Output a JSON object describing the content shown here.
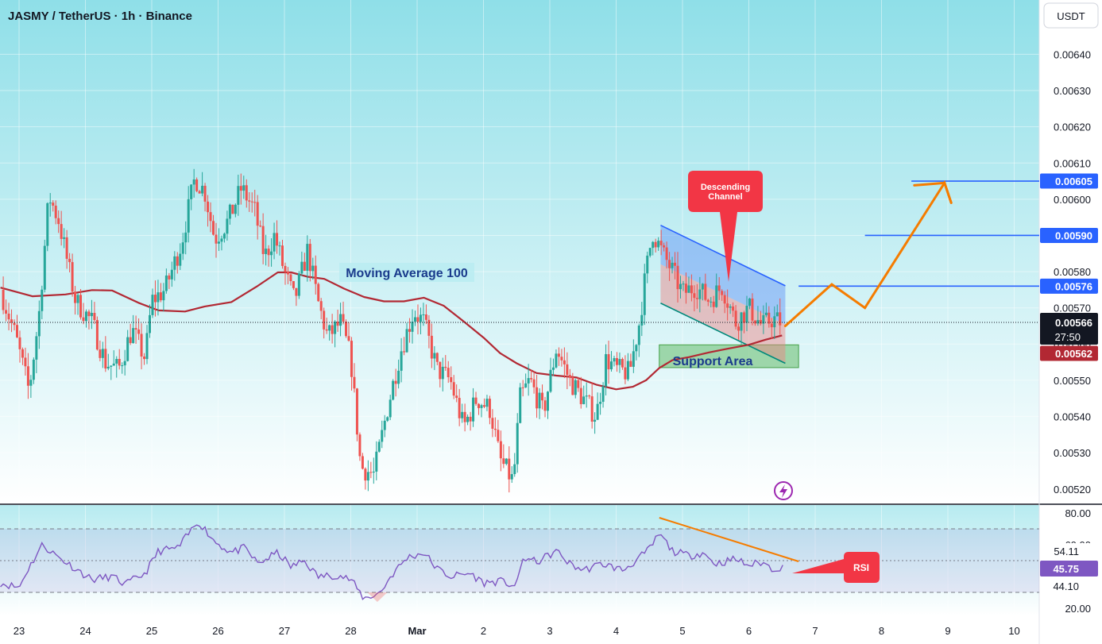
{
  "header": {
    "title": "JASMY / TetherUS · 1h · Binance",
    "currency_button": "USDT"
  },
  "colors": {
    "bg_top": "#8fdfe8",
    "bg_bottom": "#ffffff",
    "up": "#26a69a",
    "down": "#ef5350",
    "ma": "#b22833",
    "rsi": "#7e57c2",
    "blue_level": "#2962ff",
    "projection": "#f57c00",
    "callout": "#f23645",
    "support_fill": "#66bb6a"
  },
  "chart_data": [
    {
      "type": "candlestick",
      "title": "JASMY / TetherUS · 1h · Binance",
      "ylabel": "USDT",
      "ylim": [
        0.00516,
        0.00655
      ],
      "y_ticks": [
        "0.00520",
        "0.00530",
        "0.00540",
        "0.00550",
        "0.00560",
        "0.00570",
        "0.00580",
        "0.00590",
        "0.00600",
        "0.00610",
        "0.00620",
        "0.00630",
        "0.00640"
      ],
      "x_ticks": [
        "23",
        "24",
        "25",
        "26",
        "27",
        "28",
        "Mar",
        "2",
        "3",
        "4",
        "5",
        "6",
        "7",
        "8",
        "9",
        "10"
      ],
      "x_day_range": [
        22.72,
        39.4
      ],
      "close_path": [
        [
          22.72,
          0.00575
        ],
        [
          22.95,
          0.00562
        ],
        [
          23.15,
          0.00547
        ],
        [
          23.3,
          0.00568
        ],
        [
          23.45,
          0.00601
        ],
        [
          23.6,
          0.00594
        ],
        [
          23.85,
          0.00572
        ],
        [
          24.1,
          0.00566
        ],
        [
          24.3,
          0.00555
        ],
        [
          24.5,
          0.00553
        ],
        [
          24.7,
          0.00564
        ],
        [
          24.9,
          0.00556
        ],
        [
          25.0,
          0.00572
        ],
        [
          25.2,
          0.00575
        ],
        [
          25.45,
          0.00588
        ],
        [
          25.65,
          0.00606
        ],
        [
          25.8,
          0.00602
        ],
        [
          25.95,
          0.00589
        ],
        [
          26.15,
          0.00594
        ],
        [
          26.35,
          0.00603
        ],
        [
          26.55,
          0.00597
        ],
        [
          26.7,
          0.00584
        ],
        [
          26.85,
          0.0059
        ],
        [
          27.0,
          0.0058
        ],
        [
          27.15,
          0.00572
        ],
        [
          27.35,
          0.00586
        ],
        [
          27.5,
          0.00572
        ],
        [
          27.65,
          0.00562
        ],
        [
          27.85,
          0.00566
        ],
        [
          28.0,
          0.00556
        ],
        [
          28.15,
          0.00526
        ],
        [
          28.35,
          0.00524
        ],
        [
          28.55,
          0.00542
        ],
        [
          28.75,
          0.00558
        ],
        [
          28.95,
          0.00569
        ],
        [
          29.1,
          0.00566
        ],
        [
          29.3,
          0.00553
        ],
        [
          29.5,
          0.0055
        ],
        [
          29.7,
          0.00537
        ],
        [
          29.9,
          0.00545
        ],
        [
          30.1,
          0.00542
        ],
        [
          30.25,
          0.00528
        ],
        [
          30.45,
          0.00522
        ],
        [
          30.55,
          0.00545
        ],
        [
          30.7,
          0.0055
        ],
        [
          30.9,
          0.00541
        ],
        [
          31.1,
          0.00559
        ],
        [
          31.3,
          0.0055
        ],
        [
          31.5,
          0.00545
        ],
        [
          31.7,
          0.0054
        ],
        [
          31.85,
          0.00556
        ],
        [
          32.0,
          0.00553
        ],
        [
          32.2,
          0.00552
        ],
        [
          32.35,
          0.00566
        ],
        [
          32.45,
          0.0058
        ],
        [
          32.55,
          0.00591
        ],
        [
          32.7,
          0.00585
        ],
        [
          32.85,
          0.0058
        ],
        [
          33.0,
          0.00574
        ],
        [
          33.2,
          0.00576
        ],
        [
          33.4,
          0.00572
        ],
        [
          33.6,
          0.00576
        ],
        [
          33.8,
          0.00566
        ],
        [
          34.0,
          0.0057
        ],
        [
          34.2,
          0.00565
        ],
        [
          34.35,
          0.00567
        ],
        [
          34.5,
          0.00566
        ]
      ],
      "moving_average_100": [
        [
          22.72,
          0.005756
        ],
        [
          23.2,
          0.005732
        ],
        [
          23.7,
          0.005737
        ],
        [
          24.1,
          0.005749
        ],
        [
          24.4,
          0.005748
        ],
        [
          24.8,
          0.005714
        ],
        [
          25.1,
          0.005693
        ],
        [
          25.5,
          0.00569
        ],
        [
          25.8,
          0.005704
        ],
        [
          26.2,
          0.005716
        ],
        [
          26.6,
          0.005761
        ],
        [
          26.9,
          0.005798
        ],
        [
          27.1,
          0.005798
        ],
        [
          27.35,
          0.005786
        ],
        [
          27.6,
          0.00578
        ],
        [
          27.9,
          0.005753
        ],
        [
          28.2,
          0.00573
        ],
        [
          28.5,
          0.005718
        ],
        [
          28.8,
          0.005718
        ],
        [
          29.1,
          0.005728
        ],
        [
          29.4,
          0.005706
        ],
        [
          29.7,
          0.005663
        ],
        [
          30.0,
          0.005618
        ],
        [
          30.25,
          0.005575
        ],
        [
          30.5,
          0.005547
        ],
        [
          30.8,
          0.00552
        ],
        [
          31.1,
          0.005513
        ],
        [
          31.4,
          0.005508
        ],
        [
          31.7,
          0.005488
        ],
        [
          32.0,
          0.005475
        ],
        [
          32.25,
          0.005482
        ],
        [
          32.45,
          0.0055
        ],
        [
          32.65,
          0.005534
        ],
        [
          32.85,
          0.005556
        ],
        [
          33.1,
          0.005564
        ],
        [
          33.4,
          0.005577
        ],
        [
          33.7,
          0.005588
        ],
        [
          34.0,
          0.005598
        ],
        [
          34.25,
          0.005612
        ],
        [
          34.5,
          0.005624
        ]
      ],
      "current_price": "0.00566",
      "countdown": "27:50",
      "ma_value": "0.00562",
      "levels": [
        "0.00605",
        "0.00590",
        "0.00576"
      ],
      "level_segments": [
        [
          34.75,
          39.45,
          0.00576
        ],
        [
          35.75,
          39.45,
          0.0059
        ],
        [
          36.45,
          39.45,
          0.00605
        ]
      ],
      "projection": [
        [
          34.55,
          0.00565
        ],
        [
          35.25,
          0.005765
        ],
        [
          35.75,
          0.0057
        ],
        [
          36.95,
          0.006045
        ],
        [
          37.05,
          0.00599
        ]
      ],
      "channel": {
        "upper": [
          [
            32.67,
            0.005928
          ],
          [
            34.55,
            0.005761
          ]
        ],
        "lower": [
          [
            32.67,
            0.005713
          ],
          [
            34.55,
            0.005547
          ]
        ]
      },
      "support_zone": [
        32.65,
        34.75,
        0.005535,
        0.005598
      ],
      "annotations": {
        "ma_label": "Moving Average 100",
        "channel_label": "Descending Channel",
        "support_label": "Support Area"
      }
    },
    {
      "type": "line",
      "title": "RSI",
      "ylim": [
        15,
        85
      ],
      "y_ticks": [
        "80.00",
        "60.00",
        "20.00"
      ],
      "bands": [
        70,
        50,
        30
      ],
      "values_path": [
        [
          22.72,
          36
        ],
        [
          23.0,
          33
        ],
        [
          23.1,
          42
        ],
        [
          23.35,
          60
        ],
        [
          23.6,
          52
        ],
        [
          23.85,
          45
        ],
        [
          24.1,
          38
        ],
        [
          24.4,
          40
        ],
        [
          24.6,
          35
        ],
        [
          24.9,
          42
        ],
        [
          25.1,
          56
        ],
        [
          25.4,
          58
        ],
        [
          25.7,
          75
        ],
        [
          25.95,
          62
        ],
        [
          26.2,
          55
        ],
        [
          26.4,
          58
        ],
        [
          26.6,
          48
        ],
        [
          26.9,
          55
        ],
        [
          27.1,
          46
        ],
        [
          27.3,
          50
        ],
        [
          27.5,
          40
        ],
        [
          27.8,
          41
        ],
        [
          28.0,
          38
        ],
        [
          28.2,
          26
        ],
        [
          28.45,
          30
        ],
        [
          28.6,
          40
        ],
        [
          28.85,
          52
        ],
        [
          29.1,
          55
        ],
        [
          29.3,
          45
        ],
        [
          29.5,
          40
        ],
        [
          29.8,
          42
        ],
        [
          30.0,
          36
        ],
        [
          30.25,
          37
        ],
        [
          30.5,
          34
        ],
        [
          30.6,
          52
        ],
        [
          30.8,
          49
        ],
        [
          31.1,
          56
        ],
        [
          31.3,
          48
        ],
        [
          31.5,
          44
        ],
        [
          31.8,
          48
        ],
        [
          32.1,
          44
        ],
        [
          32.3,
          50
        ],
        [
          32.5,
          57
        ],
        [
          32.65,
          67
        ],
        [
          32.85,
          56
        ],
        [
          33.1,
          53
        ],
        [
          33.3,
          55
        ],
        [
          33.5,
          48
        ],
        [
          33.8,
          51
        ],
        [
          34.0,
          47
        ],
        [
          34.2,
          49
        ],
        [
          34.35,
          45
        ],
        [
          34.55,
          45.75
        ]
      ],
      "value": "45.75",
      "ma_value": "44.10",
      "upper_value": "54.11",
      "trendline": [
        [
          32.65,
          77
        ],
        [
          34.75,
          49.5
        ]
      ],
      "callout_label": "RSI"
    }
  ]
}
